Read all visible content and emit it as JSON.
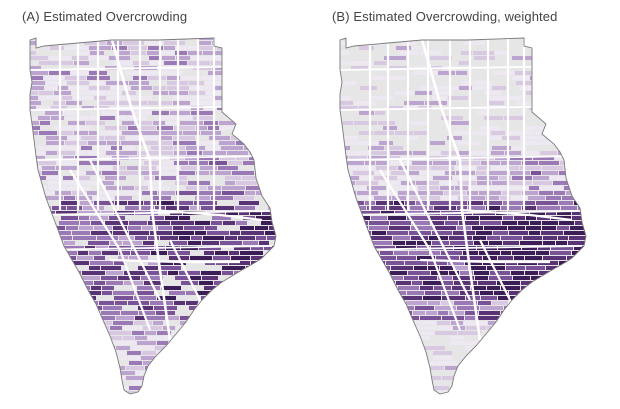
{
  "panels": [
    {
      "title": "(A) Estimated Overcrowding"
    },
    {
      "title": "(B) Estimated Overcrowding, weighted"
    }
  ],
  "colors": {
    "background": "#ffffff",
    "land_nodata": "#e6e6e6",
    "outline": "#7a7a7a",
    "street": "#ffffff",
    "ramp": [
      "#eee8f2",
      "#d8c8e2",
      "#bda3cf",
      "#9b78b6",
      "#7a5298",
      "#5a3377",
      "#3d1d57"
    ]
  }
}
